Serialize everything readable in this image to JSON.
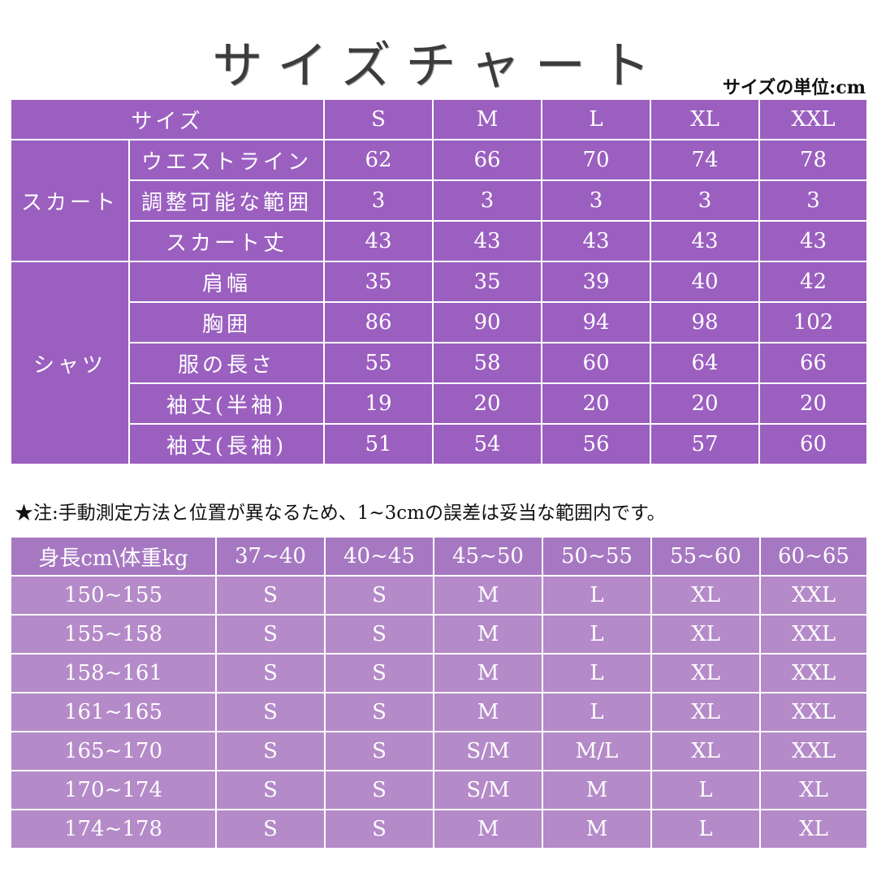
{
  "title": "サイズチャート",
  "unit_label": "サイズの単位:cm",
  "size_table": {
    "header_label": "サイズ",
    "sizes": [
      "S",
      "M",
      "L",
      "XL",
      "XXL"
    ],
    "groups": [
      {
        "name": "スカート",
        "rows": [
          {
            "label": "ウエストライン",
            "values": [
              "62",
              "66",
              "70",
              "74",
              "78"
            ]
          },
          {
            "label": "調整可能な範囲",
            "values": [
              "3",
              "3",
              "3",
              "3",
              "3"
            ]
          },
          {
            "label": "スカート丈",
            "values": [
              "43",
              "43",
              "43",
              "43",
              "43"
            ]
          }
        ]
      },
      {
        "name": "シャツ",
        "rows": [
          {
            "label": "肩幅",
            "values": [
              "35",
              "35",
              "39",
              "40",
              "42"
            ]
          },
          {
            "label": "胸囲",
            "values": [
              "86",
              "90",
              "94",
              "98",
              "102"
            ]
          },
          {
            "label": "服の長さ",
            "values": [
              "55",
              "58",
              "60",
              "64",
              "66"
            ]
          },
          {
            "label": "袖丈(半袖)",
            "values": [
              "19",
              "20",
              "20",
              "20",
              "20"
            ]
          },
          {
            "label": "袖丈(長袖)",
            "values": [
              "51",
              "54",
              "56",
              "57",
              "60"
            ]
          }
        ]
      }
    ]
  },
  "note": "★注:手動測定方法と位置が異なるため、1~3cmの誤差は妥当な範囲内です。",
  "fit_table": {
    "corner": "身長cm\\体重kg",
    "weights": [
      "37~40",
      "40~45",
      "45~50",
      "50~55",
      "55~60",
      "60~65"
    ],
    "rows": [
      {
        "height": "150~155",
        "sizes": [
          "S",
          "S",
          "M",
          "L",
          "XL",
          "XXL"
        ]
      },
      {
        "height": "155~158",
        "sizes": [
          "S",
          "S",
          "M",
          "L",
          "XL",
          "XXL"
        ]
      },
      {
        "height": "158~161",
        "sizes": [
          "S",
          "S",
          "M",
          "L",
          "XL",
          "XXL"
        ]
      },
      {
        "height": "161~165",
        "sizes": [
          "S",
          "S",
          "M",
          "L",
          "XL",
          "XXL"
        ]
      },
      {
        "height": "165~170",
        "sizes": [
          "S",
          "S",
          "S/M",
          "M/L",
          "XL",
          "XXL"
        ]
      },
      {
        "height": "170~174",
        "sizes": [
          "S",
          "S",
          "S/M",
          "M",
          "L",
          "XL"
        ]
      },
      {
        "height": "174~178",
        "sizes": [
          "S",
          "S",
          "M",
          "M",
          "L",
          "XL"
        ]
      }
    ]
  },
  "colors": {
    "size_table_bg": "#9b5fc0",
    "fit_table_bg": "#b48ac8",
    "fit_header_bg": "#a778c2",
    "text": "#ffffff"
  }
}
